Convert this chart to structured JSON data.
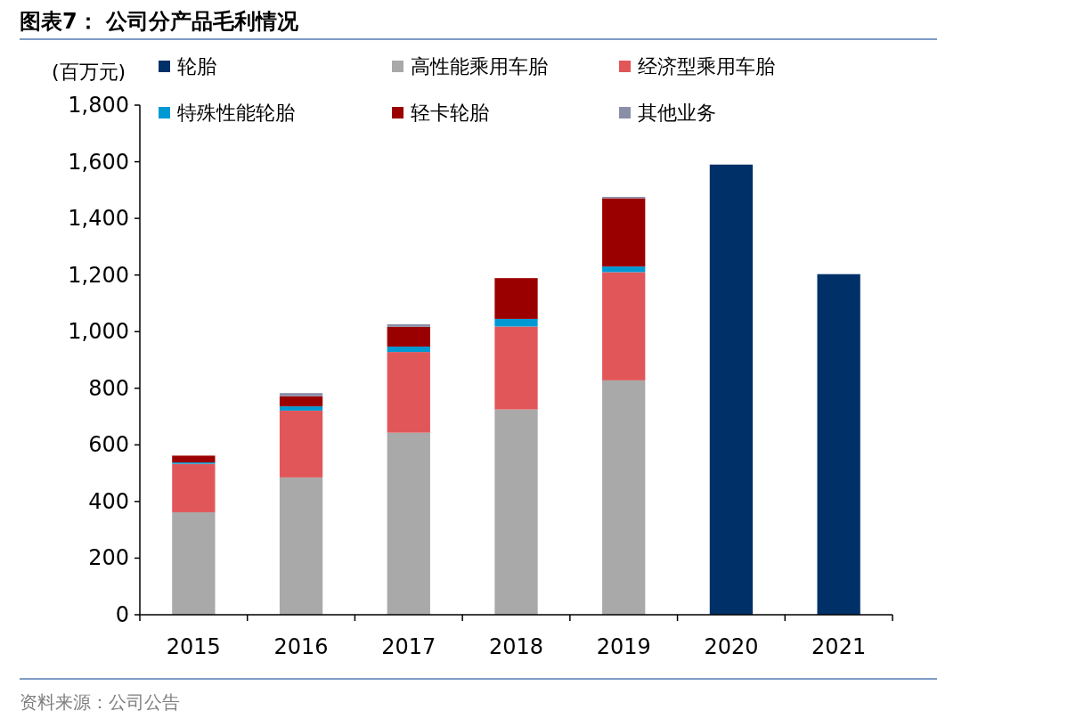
{
  "chart_data": {
    "type": "bar",
    "title": "图表7：  公司分产品毛利情况",
    "ylabel": "(百万元)",
    "stacked": true,
    "legend": "top",
    "grid": false,
    "categories": [
      "2015",
      "2016",
      "2017",
      "2018",
      "2019",
      "2020",
      "2021"
    ],
    "series": [
      {
        "name": "轮胎",
        "color": "#003068",
        "values": [
          null,
          null,
          null,
          null,
          null,
          1590,
          1203
        ]
      },
      {
        "name": "高性能乘用车胎",
        "color": "#a9a9a9",
        "values": [
          362,
          485,
          643,
          725,
          828,
          null,
          null
        ]
      },
      {
        "name": "经济型乘用车胎",
        "color": "#e15759",
        "values": [
          171,
          236,
          285,
          293,
          382,
          null,
          null
        ]
      },
      {
        "name": "特殊性能轮胎",
        "color": "#0099d4",
        "values": [
          5,
          15,
          19,
          27,
          20,
          null,
          null
        ]
      },
      {
        "name": "轻卡轮胎",
        "color": "#9b0000",
        "values": [
          24,
          36,
          70,
          144,
          241,
          null,
          null
        ]
      },
      {
        "name": "其他业务",
        "color": "#8a8fa8",
        "values": [
          null,
          11,
          9,
          null,
          5,
          null,
          null
        ]
      }
    ],
    "ylim": [
      0,
      1800
    ],
    "yticks": [
      0,
      200,
      400,
      600,
      800,
      {
        "value": 1000,
        "label": "1,000"
      },
      {
        "value": 1200,
        "label": "1,200"
      },
      {
        "value": 1400,
        "label": "1,400"
      },
      {
        "value": 1600,
        "label": "1,600"
      },
      {
        "value": 1800,
        "label": "1,800"
      }
    ],
    "annotations": [
      "资料来源：公司公告"
    ]
  }
}
